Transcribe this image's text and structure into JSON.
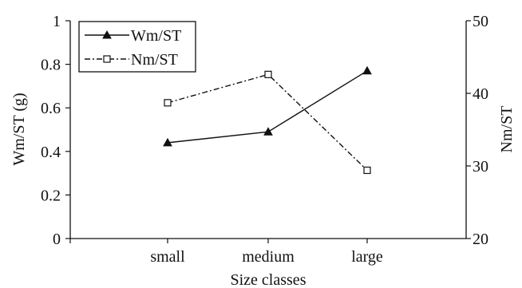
{
  "chart_data": {
    "type": "line",
    "categories": [
      "small",
      "medium",
      "large"
    ],
    "xlabel": "Size classes",
    "ylabel_left": "Wm/ST (g)",
    "ylabel_right": "Nm/ST",
    "ylim_left": [
      0,
      1
    ],
    "ylim_right": [
      20,
      50
    ],
    "yticks_left": [
      "0",
      "0.2",
      "0.4",
      "0.6",
      "0.8",
      "1"
    ],
    "yticks_right": [
      "20",
      "30",
      "40",
      "50"
    ],
    "grid": false,
    "legend_position": "top-left",
    "series": [
      {
        "name": "Wm/ST",
        "axis": "left",
        "marker": "filled-triangle",
        "line_style": "solid",
        "color": "#111111",
        "values": [
          0.44,
          0.49,
          0.77
        ]
      },
      {
        "name": "Nm/ST",
        "axis": "right",
        "marker": "open-square",
        "line_style": "dash-dot",
        "color": "#111111",
        "values": [
          38.7,
          42.6,
          29.4
        ]
      }
    ]
  }
}
